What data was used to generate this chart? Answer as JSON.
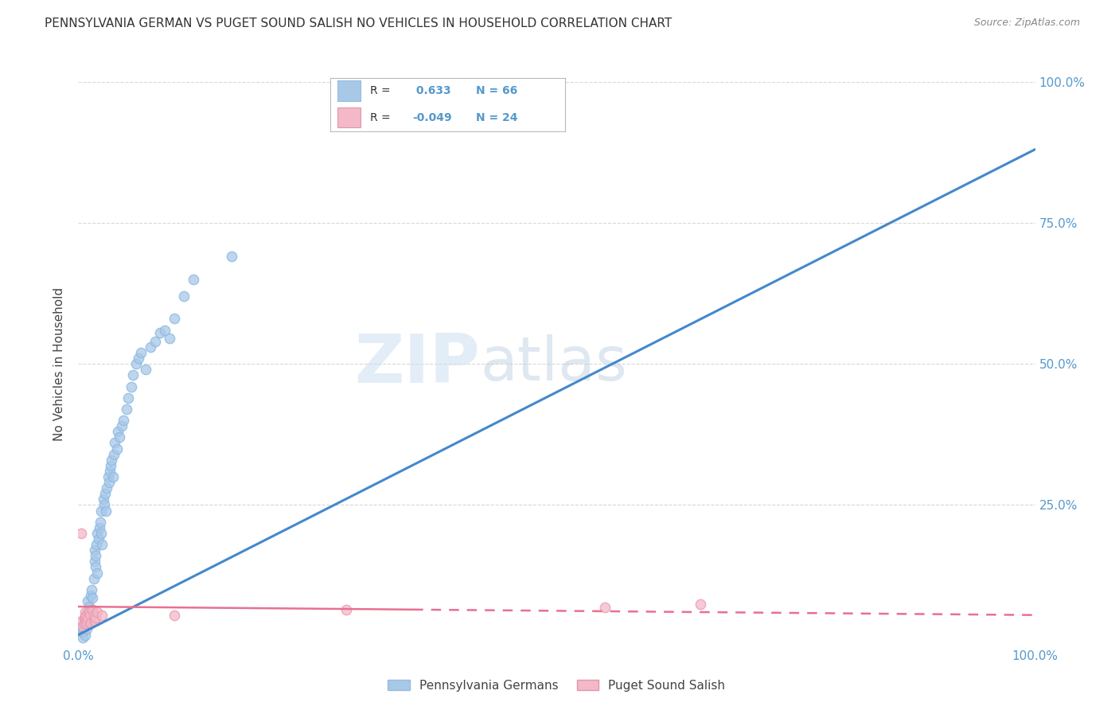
{
  "title": "PENNSYLVANIA GERMAN VS PUGET SOUND SALISH NO VEHICLES IN HOUSEHOLD CORRELATION CHART",
  "source": "Source: ZipAtlas.com",
  "ylabel": "No Vehicles in Household",
  "watermark_zip": "ZIP",
  "watermark_atlas": "atlas",
  "legend1_label": "Pennsylvania Germans",
  "legend2_label": "Puget Sound Salish",
  "r1": 0.633,
  "n1": 66,
  "r2": -0.049,
  "n2": 24,
  "xlim": [
    0.0,
    1.0
  ],
  "ylim": [
    0.0,
    1.0
  ],
  "color_blue": "#a8c8e8",
  "color_pink": "#f4b8c8",
  "line_blue": "#4488cc",
  "line_pink": "#e87090",
  "bg_color": "#ffffff",
  "grid_color": "#d8d8d8",
  "tick_color": "#5599cc",
  "blue_scatter": [
    [
      0.005,
      0.015
    ],
    [
      0.005,
      0.025
    ],
    [
      0.005,
      0.03
    ],
    [
      0.006,
      0.04
    ],
    [
      0.007,
      0.02
    ],
    [
      0.007,
      0.035
    ],
    [
      0.008,
      0.045
    ],
    [
      0.008,
      0.055
    ],
    [
      0.009,
      0.03
    ],
    [
      0.01,
      0.06
    ],
    [
      0.01,
      0.08
    ],
    [
      0.011,
      0.07
    ],
    [
      0.012,
      0.05
    ],
    [
      0.013,
      0.09
    ],
    [
      0.014,
      0.1
    ],
    [
      0.015,
      0.065
    ],
    [
      0.015,
      0.085
    ],
    [
      0.016,
      0.12
    ],
    [
      0.017,
      0.15
    ],
    [
      0.017,
      0.17
    ],
    [
      0.018,
      0.14
    ],
    [
      0.018,
      0.16
    ],
    [
      0.019,
      0.18
    ],
    [
      0.02,
      0.13
    ],
    [
      0.02,
      0.2
    ],
    [
      0.021,
      0.19
    ],
    [
      0.022,
      0.21
    ],
    [
      0.023,
      0.22
    ],
    [
      0.024,
      0.2
    ],
    [
      0.024,
      0.24
    ],
    [
      0.025,
      0.18
    ],
    [
      0.026,
      0.26
    ],
    [
      0.027,
      0.25
    ],
    [
      0.028,
      0.27
    ],
    [
      0.029,
      0.24
    ],
    [
      0.03,
      0.28
    ],
    [
      0.031,
      0.3
    ],
    [
      0.032,
      0.29
    ],
    [
      0.033,
      0.31
    ],
    [
      0.034,
      0.32
    ],
    [
      0.035,
      0.33
    ],
    [
      0.036,
      0.3
    ],
    [
      0.037,
      0.34
    ],
    [
      0.038,
      0.36
    ],
    [
      0.04,
      0.35
    ],
    [
      0.041,
      0.38
    ],
    [
      0.043,
      0.37
    ],
    [
      0.045,
      0.39
    ],
    [
      0.047,
      0.4
    ],
    [
      0.05,
      0.42
    ],
    [
      0.052,
      0.44
    ],
    [
      0.055,
      0.46
    ],
    [
      0.057,
      0.48
    ],
    [
      0.06,
      0.5
    ],
    [
      0.063,
      0.51
    ],
    [
      0.065,
      0.52
    ],
    [
      0.07,
      0.49
    ],
    [
      0.075,
      0.53
    ],
    [
      0.08,
      0.54
    ],
    [
      0.085,
      0.555
    ],
    [
      0.09,
      0.56
    ],
    [
      0.095,
      0.545
    ],
    [
      0.1,
      0.58
    ],
    [
      0.11,
      0.62
    ],
    [
      0.12,
      0.65
    ],
    [
      0.16,
      0.69
    ]
  ],
  "pink_scatter": [
    [
      0.003,
      0.2
    ],
    [
      0.004,
      0.045
    ],
    [
      0.005,
      0.035
    ],
    [
      0.006,
      0.04
    ],
    [
      0.006,
      0.05
    ],
    [
      0.007,
      0.06
    ],
    [
      0.007,
      0.05
    ],
    [
      0.008,
      0.04
    ],
    [
      0.008,
      0.055
    ],
    [
      0.009,
      0.045
    ],
    [
      0.01,
      0.05
    ],
    [
      0.011,
      0.06
    ],
    [
      0.012,
      0.055
    ],
    [
      0.013,
      0.04
    ],
    [
      0.015,
      0.065
    ],
    [
      0.016,
      0.055
    ],
    [
      0.017,
      0.045
    ],
    [
      0.018,
      0.05
    ],
    [
      0.02,
      0.06
    ],
    [
      0.025,
      0.055
    ],
    [
      0.1,
      0.055
    ],
    [
      0.28,
      0.065
    ],
    [
      0.55,
      0.068
    ],
    [
      0.65,
      0.075
    ]
  ],
  "blue_line_x": [
    0.0,
    1.0
  ],
  "blue_line_y": [
    0.02,
    0.88
  ],
  "pink_line_x": [
    0.0,
    1.0
  ],
  "pink_line_y": [
    0.07,
    0.055
  ]
}
